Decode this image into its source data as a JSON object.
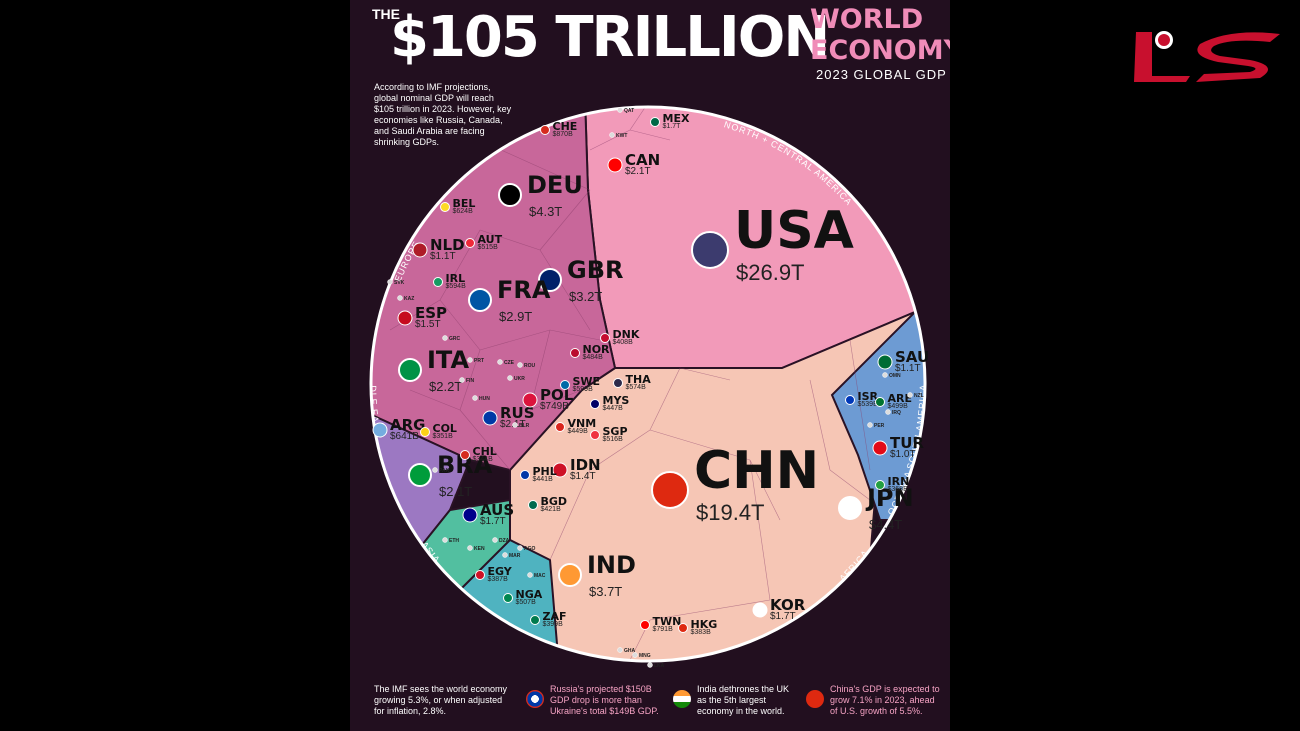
{
  "header": {
    "the": "THE",
    "big": "$105 TRILLION",
    "world_line1": "WORLD",
    "world_line2": "ECONOMY",
    "subtitle": "2023 GLOBAL GDP",
    "intro": "According to IMF projections, global nominal GDP will reach $105 trillion in 2023. However, key economies like Russia, Canada, and Saudi Arabia are facing shrinking GDPs."
  },
  "colors": {
    "background": "#220f1f",
    "north_america": "#f29ab9",
    "asia": "#f6c6b5",
    "europe": "#c8679a",
    "middle_east": "#6d9bd3",
    "south_america": "#9c78c2",
    "oceania": "#52bfa0",
    "africa": "#4fb3c0"
  },
  "chart_data": {
    "type": "voronoi-treemap",
    "title": "The $105 Trillion World Economy",
    "subtitle": "2023 Global GDP",
    "total": "$105 trillion",
    "regions": [
      "NORTH + CENTRAL AMERICA",
      "ASIA",
      "MIDDLE EAST",
      "AFRICA",
      "OCEANIA",
      "SOUTH AMERICA",
      "EUROPE"
    ],
    "countries": [
      {
        "code": "USA",
        "value": "$26.9T",
        "region": "North + Central America"
      },
      {
        "code": "CHN",
        "value": "$19.4T",
        "region": "Asia"
      },
      {
        "code": "JPN",
        "value": "$4.4T",
        "region": "Asia"
      },
      {
        "code": "DEU",
        "value": "$4.3T",
        "region": "Europe"
      },
      {
        "code": "IND",
        "value": "$3.7T",
        "region": "Asia"
      },
      {
        "code": "GBR",
        "value": "$3.2T",
        "region": "Europe"
      },
      {
        "code": "FRA",
        "value": "$2.9T",
        "region": "Europe"
      },
      {
        "code": "ITA",
        "value": "$2.2T",
        "region": "Europe"
      },
      {
        "code": "CAN",
        "value": "$2.1T",
        "region": "North + Central America"
      },
      {
        "code": "RUS",
        "value": "$2.1T",
        "region": "Europe"
      },
      {
        "code": "BRA",
        "value": "$2.1T",
        "region": "South America"
      },
      {
        "code": "KOR",
        "value": "$1.7T",
        "region": "Asia"
      },
      {
        "code": "AUS",
        "value": "$1.7T",
        "region": "Oceania"
      },
      {
        "code": "MEX",
        "value": "$1.7T",
        "region": "North + Central America"
      },
      {
        "code": "ESP",
        "value": "$1.5T",
        "region": "Europe"
      },
      {
        "code": "IDN",
        "value": "$1.4T",
        "region": "Asia"
      },
      {
        "code": "NLD",
        "value": "$1.1T",
        "region": "Europe"
      },
      {
        "code": "SAU",
        "value": "$1.1T",
        "region": "Middle East"
      },
      {
        "code": "TUR",
        "value": "$1.0T",
        "region": "Middle East"
      },
      {
        "code": "CHE",
        "value": "$870B",
        "region": "Europe"
      },
      {
        "code": "TWN",
        "value": "$791B",
        "region": "Asia"
      },
      {
        "code": "POL",
        "value": "$749B",
        "region": "Europe"
      },
      {
        "code": "ARG",
        "value": "$641B",
        "region": "South America"
      },
      {
        "code": "BEL",
        "value": "$624B",
        "region": "Europe"
      },
      {
        "code": "SWE",
        "value": "$599B",
        "region": "Europe"
      },
      {
        "code": "THA",
        "value": "$574B",
        "region": "Asia"
      },
      {
        "code": "ISR",
        "value": "$539B",
        "region": "Middle East"
      },
      {
        "code": "SGP",
        "value": "$516B",
        "region": "Asia"
      },
      {
        "code": "NGA",
        "value": "$507B",
        "region": "Africa"
      },
      {
        "code": "ARE",
        "value": "$499B",
        "region": "Middle East"
      },
      {
        "code": "NOR",
        "value": "$484B",
        "region": "Europe"
      },
      {
        "code": "MYS",
        "value": "$447B",
        "region": "Asia"
      },
      {
        "code": "VNM",
        "value": "$449B",
        "region": "Asia"
      },
      {
        "code": "PHL",
        "value": "$441B",
        "region": "Asia"
      },
      {
        "code": "BGD",
        "value": "$421B",
        "region": "Asia"
      },
      {
        "code": "DNK",
        "value": "$408B",
        "region": "Europe"
      },
      {
        "code": "ZAF",
        "value": "$399B",
        "region": "Africa"
      },
      {
        "code": "HKG",
        "value": "$383B",
        "region": "Asia"
      },
      {
        "code": "EGY",
        "value": "$387B",
        "region": "Africa"
      },
      {
        "code": "IRN",
        "value": "$368B",
        "region": "Middle East"
      },
      {
        "code": "COL",
        "value": "$351B",
        "region": "South America"
      },
      {
        "code": "CHL",
        "value": "$344B",
        "region": "South America"
      },
      {
        "code": "IRL",
        "value": "$594B",
        "region": "Europe"
      },
      {
        "code": "AUT",
        "value": "$515B",
        "region": "Europe"
      }
    ],
    "small_labels": [
      "GRC",
      "PRT",
      "CZE",
      "ROU",
      "FIN",
      "HUN",
      "UKR",
      "SVK",
      "KAZ",
      "QAT",
      "KWT",
      "IRQ",
      "PER",
      "NZL",
      "PAK",
      "ETH",
      "KEN",
      "DZA",
      "MAR",
      "AGO",
      "MAC",
      "MNG",
      "LKA",
      "GHA",
      "BLR",
      "OMN"
    ]
  },
  "footer": {
    "f1": "The IMF sees the world economy growing 5.3%, or when adjusted for inflation, 2.8%.",
    "f2": "Russia's projected $150B GDP drop is more than Ukraine's total $149B GDP.",
    "f3": "India dethrones the UK as the 5th largest economy in the world.",
    "f4": "China's GDP is expected to grow 7.1% in 2023, ahead of U.S. growth of 5.5%."
  }
}
